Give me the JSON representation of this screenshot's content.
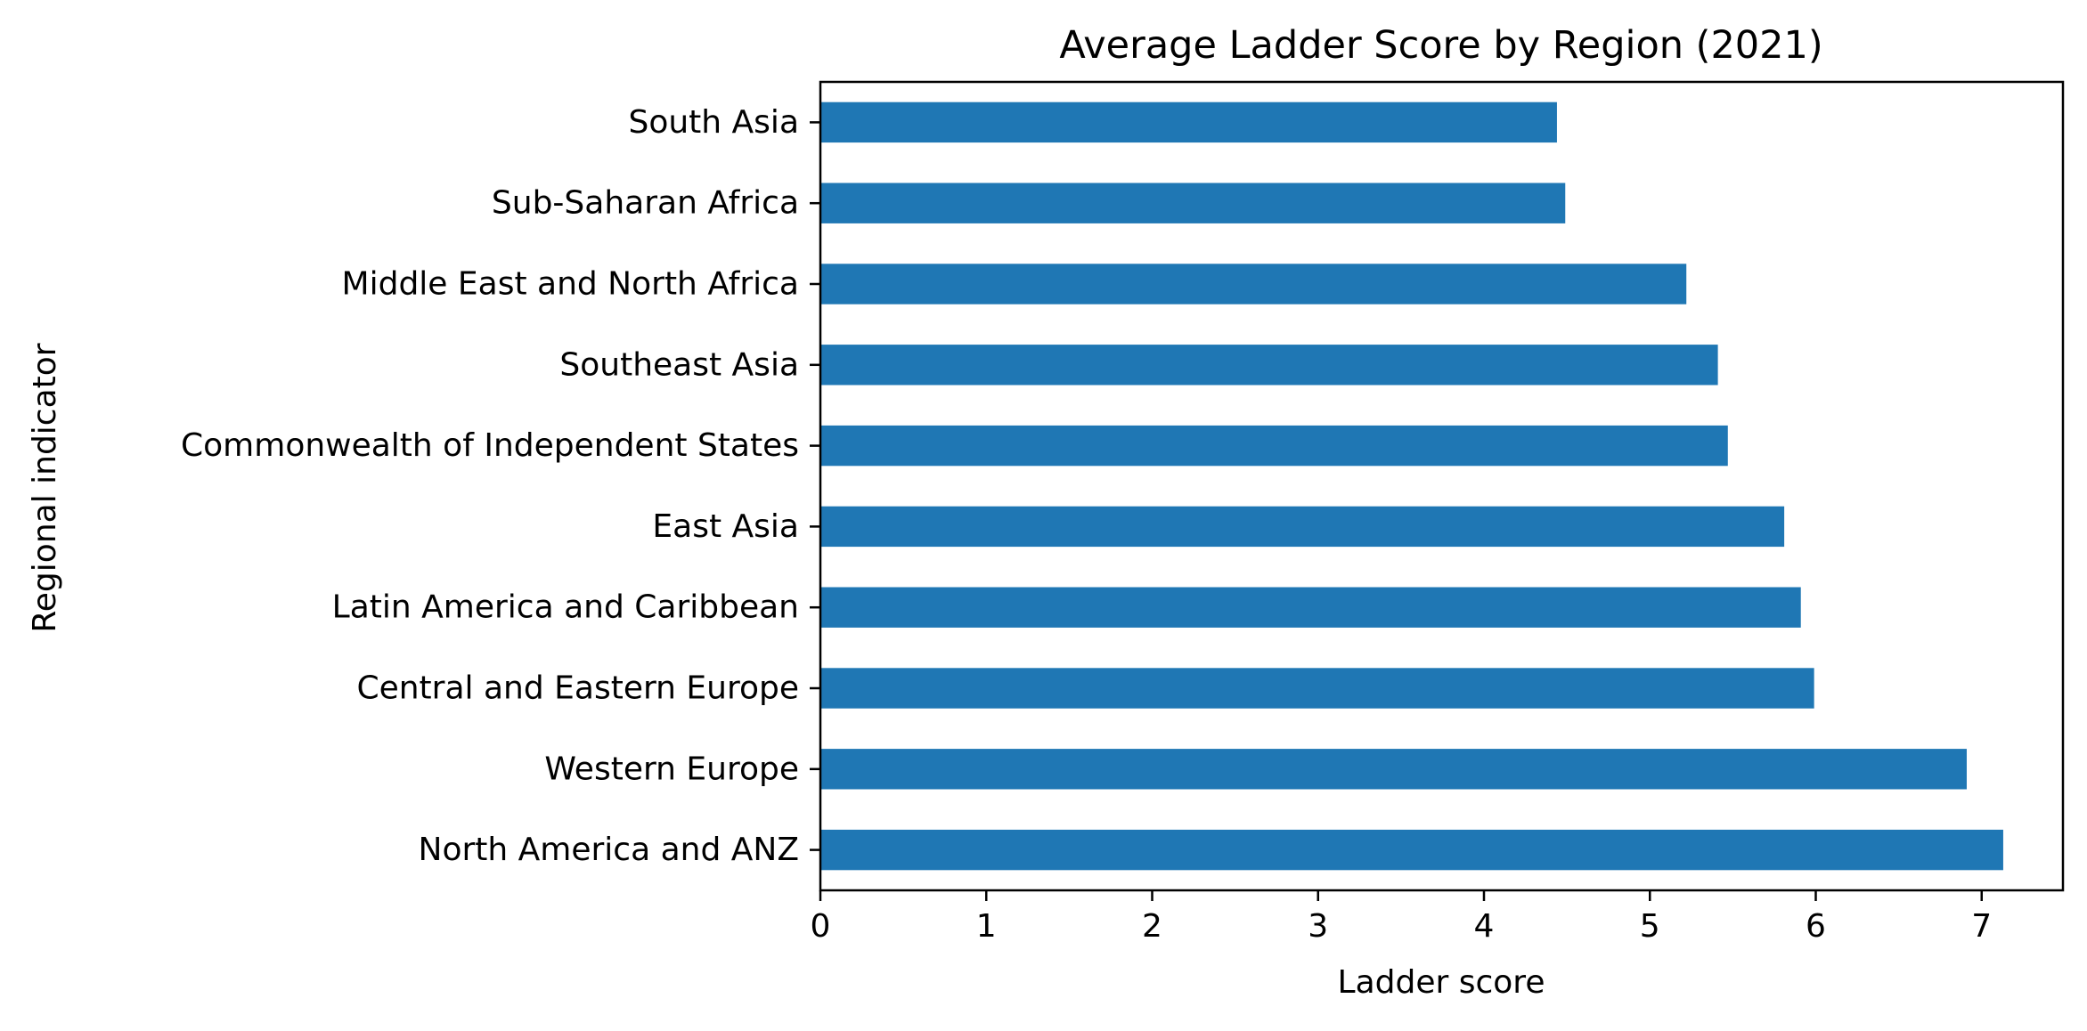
{
  "chart_data": {
    "type": "bar",
    "orientation": "horizontal",
    "title": "Average Ladder Score by Region (2021)",
    "xlabel": "Ladder score",
    "ylabel": "Regional indicator",
    "categories": [
      "South Asia",
      "Sub-Saharan Africa",
      "Middle East and North Africa",
      "Southeast Asia",
      "Commonwealth of Independent States",
      "East Asia",
      "Latin America and Caribbean",
      "Central and Eastern Europe",
      "Western Europe",
      "North America and ANZ"
    ],
    "values": [
      4.44,
      4.49,
      5.22,
      5.41,
      5.47,
      5.81,
      5.91,
      5.99,
      6.91,
      7.13
    ],
    "xlim": [
      0,
      7.49
    ],
    "xticks": [
      0,
      1,
      2,
      3,
      4,
      5,
      6,
      7
    ],
    "bar_color": "#1f77b4",
    "grid": false,
    "legend": "none"
  }
}
